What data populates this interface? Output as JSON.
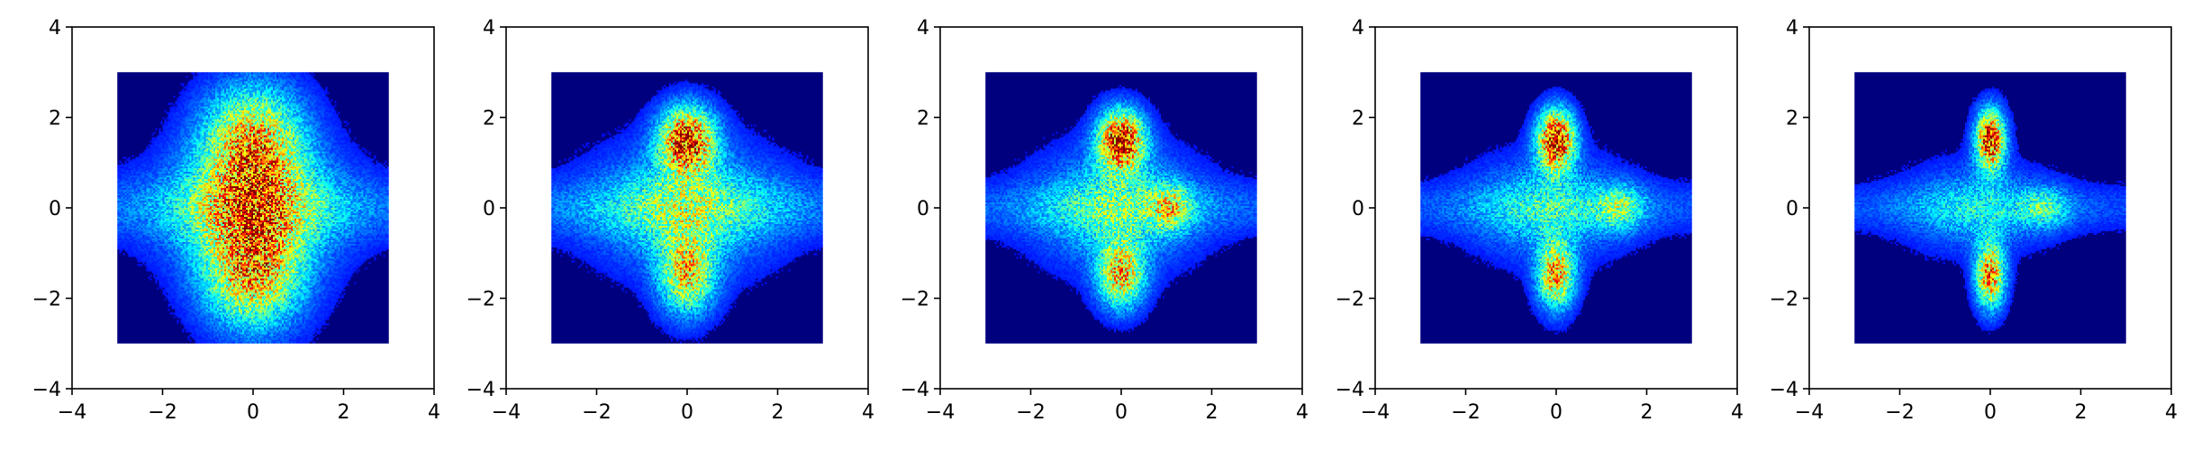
{
  "chart_data": [
    {
      "type": "heatmap",
      "colormap": "jet",
      "background_color": "#00007f",
      "xlim": [
        -4,
        4
      ],
      "ylim": [
        -4,
        4
      ],
      "data_extent": {
        "x": [
          -3,
          3
        ],
        "y": [
          -3,
          3
        ]
      },
      "x_ticks": [
        "−4",
        "−2",
        "0",
        "2",
        "4"
      ],
      "y_ticks": [
        "4",
        "2",
        "0",
        "−2",
        "−4"
      ],
      "x_tick_values": [
        -4,
        -2,
        0,
        2,
        4
      ],
      "y_tick_values": [
        4,
        2,
        0,
        -2,
        -4
      ],
      "blobs": [
        {
          "x": 0,
          "y": 1.45,
          "sx": 0.75,
          "sy": 0.85,
          "amp": 0.55
        },
        {
          "x": 0,
          "y": -1.45,
          "sx": 0.75,
          "sy": 0.85,
          "amp": 0.55
        },
        {
          "x": 0,
          "y": 0,
          "sx": 1.2,
          "sy": 0.95,
          "amp": 0.38
        },
        {
          "x": 0,
          "y": 0,
          "sx": 4.0,
          "sy": 0.5,
          "amp": 0.14
        }
      ]
    },
    {
      "type": "heatmap",
      "colormap": "jet",
      "background_color": "#00007f",
      "xlim": [
        -4,
        4
      ],
      "ylim": [
        -4,
        4
      ],
      "data_extent": {
        "x": [
          -3,
          3
        ],
        "y": [
          -3,
          3
        ]
      },
      "x_ticks": [
        "−4",
        "−2",
        "0",
        "2",
        "4"
      ],
      "y_ticks": [
        "4",
        "2",
        "0",
        "−2",
        "−4"
      ],
      "x_tick_values": [
        -4,
        -2,
        0,
        2,
        4
      ],
      "y_tick_values": [
        4,
        2,
        0,
        -2,
        -4
      ],
      "blobs": [
        {
          "x": 0,
          "y": 1.5,
          "sx": 0.42,
          "sy": 0.5,
          "amp": 0.75
        },
        {
          "x": 0,
          "y": -1.5,
          "sx": 0.42,
          "sy": 0.6,
          "amp": 0.5
        },
        {
          "x": 0,
          "y": 0,
          "sx": 1.3,
          "sy": 0.9,
          "amp": 0.3
        },
        {
          "x": 0,
          "y": 0,
          "sx": 4.0,
          "sy": 0.45,
          "amp": 0.14
        }
      ]
    },
    {
      "type": "heatmap",
      "colormap": "jet",
      "background_color": "#00007f",
      "xlim": [
        -4,
        4
      ],
      "ylim": [
        -4,
        4
      ],
      "data_extent": {
        "x": [
          -3,
          3
        ],
        "y": [
          -3,
          3
        ]
      },
      "x_ticks": [
        "−4",
        "−2",
        "0",
        "2",
        "4"
      ],
      "y_ticks": [
        "4",
        "2",
        "0",
        "−2",
        "−4"
      ],
      "x_tick_values": [
        -4,
        -2,
        0,
        2,
        4
      ],
      "y_tick_values": [
        4,
        2,
        0,
        -2,
        -4
      ],
      "blobs": [
        {
          "x": 0,
          "y": 1.5,
          "sx": 0.35,
          "sy": 0.45,
          "amp": 0.8
        },
        {
          "x": 0,
          "y": -1.5,
          "sx": 0.35,
          "sy": 0.5,
          "amp": 0.55
        },
        {
          "x": -0.1,
          "y": 0,
          "sx": 1.15,
          "sy": 0.85,
          "amp": 0.28
        },
        {
          "x": 1.1,
          "y": 0,
          "sx": 0.3,
          "sy": 0.35,
          "amp": 0.3
        },
        {
          "x": 0,
          "y": 0,
          "sx": 4.0,
          "sy": 0.4,
          "amp": 0.12
        }
      ]
    },
    {
      "type": "heatmap",
      "colormap": "jet",
      "background_color": "#00007f",
      "xlim": [
        -4,
        4
      ],
      "ylim": [
        -4,
        4
      ],
      "data_extent": {
        "x": [
          -3,
          3
        ],
        "y": [
          -3,
          3
        ]
      },
      "x_ticks": [
        "−4",
        "−2",
        "0",
        "2",
        "4"
      ],
      "y_ticks": [
        "4",
        "2",
        "0",
        "−2",
        "−4"
      ],
      "x_tick_values": [
        -4,
        -2,
        0,
        2,
        4
      ],
      "y_tick_values": [
        4,
        2,
        0,
        -2,
        -4
      ],
      "blobs": [
        {
          "x": 0,
          "y": 1.5,
          "sx": 0.28,
          "sy": 0.45,
          "amp": 0.85
        },
        {
          "x": 0,
          "y": -1.5,
          "sx": 0.28,
          "sy": 0.5,
          "amp": 0.6
        },
        {
          "x": -0.2,
          "y": 0,
          "sx": 1.1,
          "sy": 0.75,
          "amp": 0.22
        },
        {
          "x": 1.4,
          "y": 0,
          "sx": 0.35,
          "sy": 0.35,
          "amp": 0.26
        },
        {
          "x": 0,
          "y": 0,
          "sx": 4.0,
          "sy": 0.38,
          "amp": 0.11
        }
      ]
    },
    {
      "type": "heatmap",
      "colormap": "jet",
      "background_color": "#00007f",
      "xlim": [
        -4,
        4
      ],
      "ylim": [
        -4,
        4
      ],
      "data_extent": {
        "x": [
          -3,
          3
        ],
        "y": [
          -3,
          3
        ]
      },
      "x_ticks": [
        "−4",
        "−2",
        "0",
        "2",
        "4"
      ],
      "y_ticks": [
        "4",
        "2",
        "0",
        "−2",
        "−4"
      ],
      "x_tick_values": [
        -4,
        -2,
        0,
        2,
        4
      ],
      "y_tick_values": [
        4,
        2,
        0,
        -2,
        -4
      ],
      "blobs": [
        {
          "x": 0,
          "y": 1.5,
          "sx": 0.22,
          "sy": 0.45,
          "amp": 0.8
        },
        {
          "x": 0,
          "y": -1.5,
          "sx": 0.22,
          "sy": 0.5,
          "amp": 0.65
        },
        {
          "x": -0.3,
          "y": 0,
          "sx": 1.05,
          "sy": 0.65,
          "amp": 0.18
        },
        {
          "x": 1.2,
          "y": 0,
          "sx": 0.35,
          "sy": 0.3,
          "amp": 0.22
        },
        {
          "x": 0,
          "y": 0,
          "sx": 4.0,
          "sy": 0.35,
          "amp": 0.1
        }
      ]
    }
  ]
}
